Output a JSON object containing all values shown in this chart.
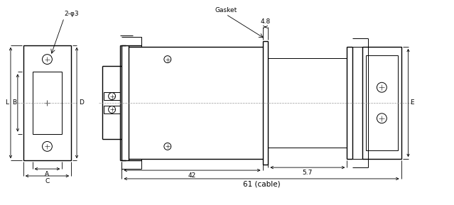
{
  "bg_color": "#ffffff",
  "line_color": "#000000",
  "labels": {
    "two_phi3": "2-φ3",
    "gasket": "Gasket",
    "dim_48": "4.8",
    "dim_42": "42",
    "dim_57": "5.7",
    "dim_61": "61 (cable)",
    "label_L": "L",
    "label_B": "B",
    "label_D": "D",
    "label_A": "A",
    "label_C": "C",
    "label_E": "E"
  },
  "fig_width": 6.39,
  "fig_height": 2.89,
  "dpi": 100
}
